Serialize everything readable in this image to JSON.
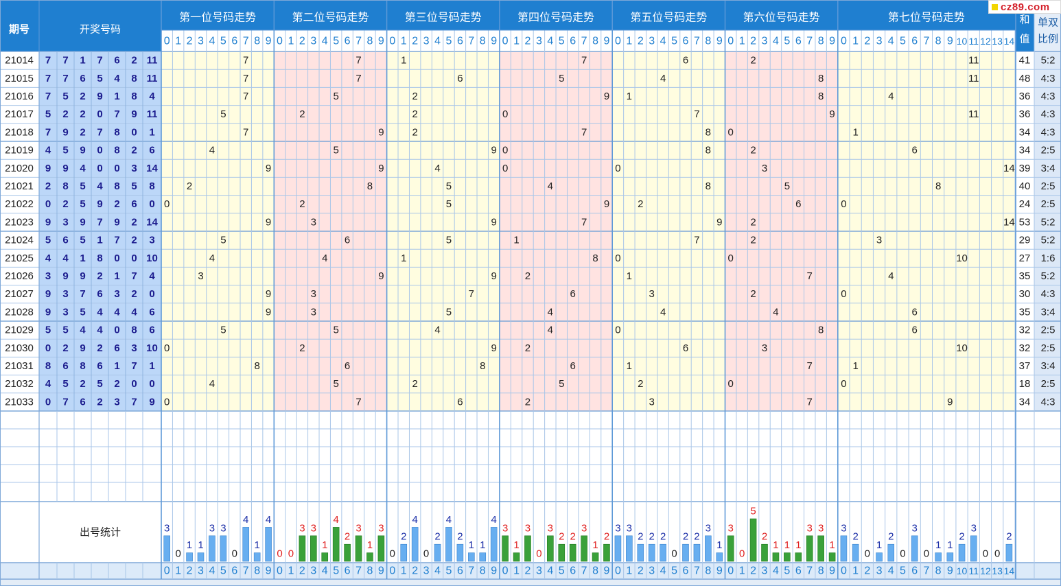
{
  "header": {
    "period_label": "期号",
    "draw_label": "开奖号码",
    "sum_label": [
      "和",
      "值"
    ],
    "ratio_label": [
      "单双",
      "比例"
    ],
    "position_titles": [
      "第一位号码走势",
      "第二位号码走势",
      "第三位号码走势",
      "第四位号码走势",
      "第五位号码走势",
      "第六位号码走势",
      "第七位号码走势"
    ]
  },
  "stats_label": "出号统计",
  "logo_text": "cz89.com",
  "colors": {
    "header_bg": "#1f7fd0",
    "yellow_zone": "#fffde0",
    "pink_zone": "#ffe3e1",
    "draw_cell": "#bcd7f8",
    "draw_text": "#1c1c8e",
    "bar_blue": "#67aef0",
    "bar_green": "#3aa13a",
    "stat_red": "#e02020",
    "stat_blue": "#1c2fa8"
  },
  "chart_data": {
    "type": "table",
    "periods": [
      "21014",
      "21015",
      "21016",
      "21017",
      "21018",
      "21019",
      "21020",
      "21021",
      "21022",
      "21023",
      "21024",
      "21025",
      "21026",
      "21027",
      "21028",
      "21029",
      "21030",
      "21031",
      "21032",
      "21033"
    ],
    "draws": [
      [
        7,
        7,
        1,
        7,
        6,
        2,
        11
      ],
      [
        7,
        7,
        6,
        5,
        4,
        8,
        11
      ],
      [
        7,
        5,
        2,
        9,
        1,
        8,
        4
      ],
      [
        5,
        2,
        2,
        0,
        7,
        9,
        11
      ],
      [
        7,
        9,
        2,
        7,
        8,
        0,
        1
      ],
      [
        4,
        5,
        9,
        0,
        8,
        2,
        6
      ],
      [
        9,
        9,
        4,
        0,
        0,
        3,
        14
      ],
      [
        2,
        8,
        5,
        4,
        8,
        5,
        8
      ],
      [
        0,
        2,
        5,
        9,
        2,
        6,
        0
      ],
      [
        9,
        3,
        9,
        7,
        9,
        2,
        14
      ],
      [
        5,
        6,
        5,
        1,
        7,
        2,
        3
      ],
      [
        4,
        4,
        1,
        8,
        0,
        0,
        10
      ],
      [
        3,
        9,
        9,
        2,
        1,
        7,
        4
      ],
      [
        9,
        3,
        7,
        6,
        3,
        2,
        0
      ],
      [
        9,
        3,
        5,
        4,
        4,
        4,
        6
      ],
      [
        5,
        5,
        4,
        4,
        0,
        8,
        6
      ],
      [
        0,
        2,
        9,
        2,
        6,
        3,
        10
      ],
      [
        8,
        6,
        8,
        6,
        1,
        7,
        1
      ],
      [
        4,
        5,
        2,
        5,
        2,
        0,
        0
      ],
      [
        0,
        7,
        6,
        2,
        3,
        7,
        9
      ]
    ],
    "sums": [
      41,
      48,
      36,
      36,
      34,
      34,
      39,
      40,
      24,
      53,
      29,
      27,
      35,
      30,
      35,
      32,
      32,
      37,
      18,
      34
    ],
    "ratios": [
      "5:2",
      "4:3",
      "4:3",
      "4:3",
      "4:3",
      "2:5",
      "3:4",
      "2:5",
      "2:5",
      "5:2",
      "5:2",
      "1:6",
      "5:2",
      "4:3",
      "3:4",
      "2:5",
      "2:5",
      "3:4",
      "2:5",
      "4:3"
    ],
    "frequency": [
      [
        3,
        0,
        1,
        1,
        3,
        3,
        0,
        4,
        1,
        4
      ],
      [
        0,
        0,
        3,
        3,
        1,
        4,
        2,
        3,
        1,
        3
      ],
      [
        0,
        2,
        4,
        0,
        2,
        4,
        2,
        1,
        1,
        4
      ],
      [
        3,
        1,
        3,
        0,
        3,
        2,
        2,
        3,
        1,
        2
      ],
      [
        3,
        3,
        2,
        2,
        2,
        0,
        2,
        2,
        3,
        1
      ],
      [
        3,
        0,
        5,
        2,
        1,
        1,
        1,
        3,
        3,
        1
      ],
      [
        3,
        2,
        0,
        1,
        2,
        0,
        3,
        0,
        1,
        1,
        2,
        3,
        0,
        0,
        2
      ]
    ]
  }
}
